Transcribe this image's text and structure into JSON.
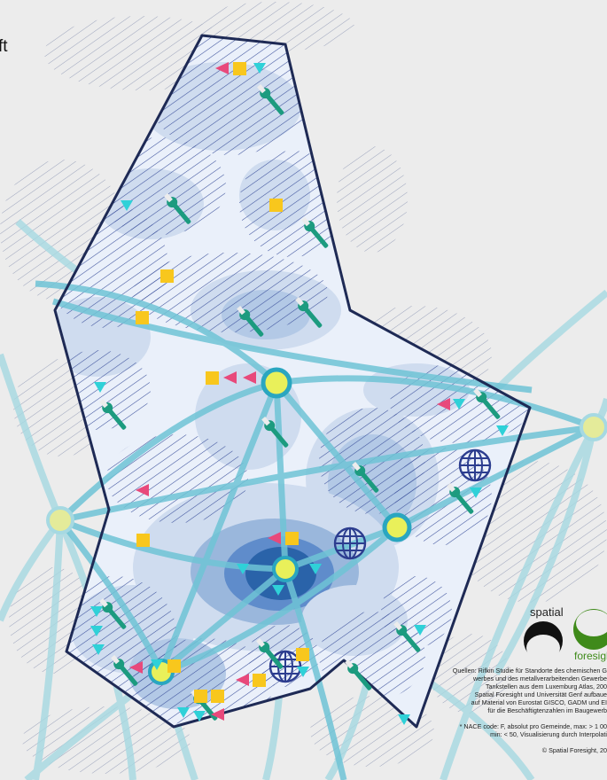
{
  "title_fragment": "ft",
  "logo": {
    "spatial": "spatial",
    "foresight": "foresigh"
  },
  "credits": {
    "lines": [
      "Quellen: Rifkin Studie für Standorte des chemischen G",
      "werbes und des metallverarbeitenden Gewerbe",
      "Tankstellen aus dem Luxemburg Atlas, 200",
      "Spatial Foresight und Universität Genf aufbaue",
      "auf Material von Eurostat GISCO, GADM und EI",
      "für die Beschäftigtenzahlen im Baugewerb"
    ],
    "nace_lines": [
      "* NACE code: F, absolut pro Gemeinde, max: > 1 00",
      "min: < 50, Visualisierung durch Interpolati"
    ],
    "copyright": "© Spatial Foresight, 20"
  },
  "colors": {
    "background": "#ececec",
    "border": "#1e2a55",
    "hatch": "#3a4f9a",
    "hub_fill": "#e9f05a",
    "hub_ring": "#2aa6c0",
    "network": "#6fc4d6",
    "wrench": "#1c9b7f",
    "flag_pink": "#e8497b",
    "triangle_cyan": "#2fd1d8",
    "square_yellow": "#f8c71d",
    "globe": "#2c3d8f",
    "density_light": "#cfdcef",
    "density_mid": "#9ab7dc",
    "density_dark": "#2a63a9"
  },
  "icons": [
    "wrench-icon",
    "globe-icon",
    "square-marker-icon",
    "pink-flag-icon",
    "cyan-triangle-icon",
    "network-hub-icon"
  ]
}
